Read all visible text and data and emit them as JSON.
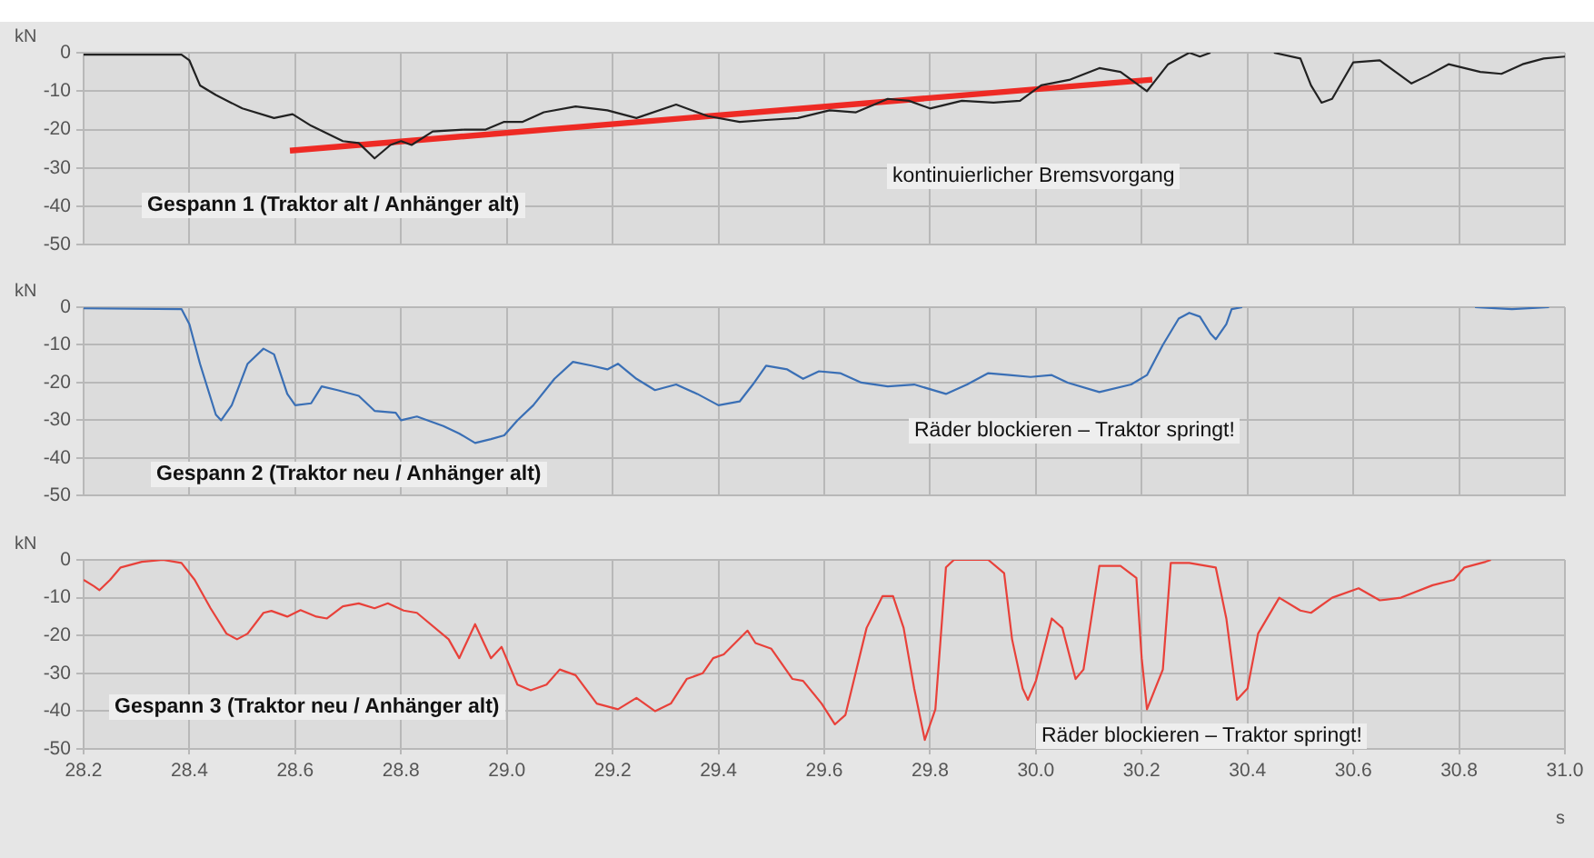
{
  "chart_data": [
    {
      "type": "line",
      "ylabel": "kN",
      "xlim": [
        28.2,
        31.0
      ],
      "ylim": [
        -50,
        0
      ],
      "yticks": [
        -50,
        -40,
        -30,
        -20,
        -10,
        0
      ],
      "xticks": [
        {
          "value": 28.2,
          "label": null
        },
        {
          "value": 28.4,
          "label": null
        },
        {
          "value": 28.6,
          "label": null
        },
        {
          "value": 28.8,
          "label": null
        },
        {
          "value": 29.0,
          "label": null
        },
        {
          "value": 29.2,
          "label": null
        },
        {
          "value": 29.4,
          "label": null
        },
        {
          "value": 29.6,
          "label": null
        },
        {
          "value": 29.8,
          "label": null
        },
        {
          "value": 30.0,
          "label": null
        },
        {
          "value": 30.2,
          "label": null
        },
        {
          "value": 30.4,
          "label": null
        },
        {
          "value": 30.6,
          "label": null
        },
        {
          "value": 30.8,
          "label": null
        },
        {
          "value": 31.0,
          "label": null
        }
      ],
      "tick_labels": "y",
      "grid": true,
      "legend": false,
      "marker": "none",
      "annotations": [
        "Gespann 1 (Traktor alt / Anhänger alt)",
        "kontinuierlicher Bremsvorgang"
      ],
      "series": [
        {
          "color": "#222222",
          "x": [
            28.2,
            28.385,
            28.4,
            28.42,
            28.45,
            28.5,
            28.56,
            28.595,
            28.63,
            28.69,
            28.72,
            28.75,
            28.78,
            28.8,
            28.82,
            28.86,
            28.92,
            28.96,
            28.995,
            29.03,
            29.07,
            29.13,
            29.19,
            29.245,
            29.32,
            29.38,
            29.44,
            29.49,
            29.55,
            29.61,
            29.66,
            29.72,
            29.76,
            29.8,
            29.86,
            29.92,
            29.97,
            30.01,
            30.065,
            30.12,
            30.16,
            30.21,
            30.25,
            30.29,
            30.31,
            30.33,
            30.4,
            30.45,
            30.5,
            30.52,
            30.54,
            30.56,
            30.6,
            30.65,
            30.69,
            30.71,
            30.74,
            30.78,
            30.84,
            30.88,
            30.92,
            30.96,
            31.0
          ],
          "values": [
            -0.5,
            -0.5,
            -2,
            -8.5,
            -11,
            -14.5,
            -17,
            -16,
            -19,
            -23,
            -23.5,
            -27.5,
            -24,
            -23,
            -24,
            -20.5,
            -20,
            -20,
            -18,
            -18,
            -15.5,
            -14,
            -15,
            -17,
            -13.5,
            -16.5,
            -18,
            -17.5,
            -17,
            -15,
            -15.5,
            -12,
            -12.5,
            -14.5,
            -12.5,
            -13,
            -12.5,
            -8.5,
            -7,
            -4,
            -5,
            -10,
            -3,
            0,
            -1,
            0,
            null,
            0,
            -1.5,
            -8.5,
            -13,
            -12,
            -2.5,
            -2,
            -6,
            -8,
            -6,
            -3,
            -5,
            -5.5,
            -3,
            -1.5,
            -1
          ]
        },
        {
          "type": "line",
          "color": "#ee2a24",
          "x": [
            28.59,
            30.22
          ],
          "values": [
            -25.5,
            -7
          ]
        }
      ]
    },
    {
      "type": "line",
      "ylabel": "kN",
      "xlim": [
        28.2,
        31.0
      ],
      "ylim": [
        -50,
        0
      ],
      "yticks": [
        -50,
        -40,
        -30,
        -20,
        -10,
        0
      ],
      "xticks": [
        {
          "value": 28.2,
          "label": null
        },
        {
          "value": 28.4,
          "label": null
        },
        {
          "value": 28.6,
          "label": null
        },
        {
          "value": 28.8,
          "label": null
        },
        {
          "value": 29.0,
          "label": null
        },
        {
          "value": 29.2,
          "label": null
        },
        {
          "value": 29.4,
          "label": null
        },
        {
          "value": 29.6,
          "label": null
        },
        {
          "value": 29.8,
          "label": null
        },
        {
          "value": 30.0,
          "label": null
        },
        {
          "value": 30.2,
          "label": null
        },
        {
          "value": 30.4,
          "label": null
        },
        {
          "value": 30.6,
          "label": null
        },
        {
          "value": 30.8,
          "label": null
        },
        {
          "value": 31.0,
          "label": null
        }
      ],
      "tick_labels": "y",
      "grid": true,
      "legend": false,
      "marker": "none",
      "annotations": [
        "Gespann 2 (Traktor neu / Anhänger alt)",
        "Räder blockieren – Traktor springt!"
      ],
      "series": [
        {
          "color": "#3a6fb5",
          "x": [
            28.2,
            28.385,
            28.4,
            28.42,
            28.45,
            28.46,
            28.48,
            28.51,
            28.54,
            28.56,
            28.585,
            28.6,
            28.63,
            28.65,
            28.68,
            28.72,
            28.75,
            28.79,
            28.8,
            28.83,
            28.88,
            28.91,
            28.94,
            28.97,
            28.995,
            29.02,
            29.05,
            29.09,
            29.125,
            29.16,
            29.19,
            29.21,
            29.245,
            29.28,
            29.32,
            29.36,
            29.4,
            29.44,
            29.465,
            29.49,
            29.53,
            29.56,
            29.59,
            29.63,
            29.67,
            29.72,
            29.77,
            29.83,
            29.87,
            29.91,
            29.95,
            29.99,
            30.03,
            30.06,
            30.12,
            30.18,
            30.21,
            30.24,
            30.27,
            30.29,
            30.31,
            30.33,
            30.34,
            30.36,
            30.37,
            30.39,
            30.6,
            30.83,
            30.9,
            30.97
          ],
          "values": [
            -0.3,
            -0.5,
            -4.5,
            -15,
            -28.5,
            -30,
            -26,
            -15,
            -11,
            -12.5,
            -23,
            -26,
            -25.5,
            -21,
            -22,
            -23.5,
            -27.5,
            -28,
            -30,
            -29,
            -31.5,
            -33.5,
            -36,
            -35,
            -34,
            -30,
            -26,
            -19,
            -14.5,
            -15.5,
            -16.5,
            -15,
            -19,
            -22,
            -20.5,
            -23,
            -26,
            -25,
            -20.5,
            -15.5,
            -16.5,
            -19,
            -17,
            -17.5,
            -20,
            -21,
            -20.5,
            -23,
            -20.5,
            -17.5,
            -18,
            -18.5,
            -18,
            -20,
            -22.5,
            -20.5,
            -18,
            -10,
            -3,
            -1.5,
            -2.5,
            -7,
            -8.5,
            -4.5,
            -0.5,
            0,
            null,
            0,
            -0.5,
            0
          ]
        }
      ]
    },
    {
      "type": "line",
      "ylabel": "kN",
      "xlabel": "s",
      "xlim": [
        28.2,
        31.0
      ],
      "ylim": [
        -50,
        0
      ],
      "yticks": [
        -50,
        -40,
        -30,
        -20,
        -10,
        0
      ],
      "xticks": [
        {
          "value": 28.2,
          "label": "28.2"
        },
        {
          "value": 28.4,
          "label": "28.4"
        },
        {
          "value": 28.6,
          "label": "28.6"
        },
        {
          "value": 28.8,
          "label": "28.8"
        },
        {
          "value": 29.0,
          "label": "29.0"
        },
        {
          "value": 29.2,
          "label": "29.2"
        },
        {
          "value": 29.4,
          "label": "29.4"
        },
        {
          "value": 29.6,
          "label": "29.6"
        },
        {
          "value": 29.8,
          "label": "29.8"
        },
        {
          "value": 30.0,
          "label": "30.0"
        },
        {
          "value": 30.2,
          "label": "30.2"
        },
        {
          "value": 30.4,
          "label": "30.4"
        },
        {
          "value": 30.6,
          "label": "30.6"
        },
        {
          "value": 30.8,
          "label": "30.8"
        },
        {
          "value": 31.0,
          "label": "31.0"
        }
      ],
      "grid": true,
      "legend": false,
      "marker": "none",
      "annotations": [
        "Gespann 3 (Traktor neu / Anhänger alt)",
        "Räder blockieren – Traktor springt!"
      ],
      "series": [
        {
          "color": "#e8413a",
          "x": [
            28.2,
            28.22,
            28.23,
            28.25,
            28.27,
            28.31,
            28.35,
            28.385,
            28.41,
            28.44,
            28.47,
            28.49,
            28.51,
            28.54,
            28.555,
            28.585,
            28.61,
            28.64,
            28.66,
            28.69,
            28.72,
            28.75,
            28.775,
            28.805,
            28.83,
            28.89,
            28.91,
            28.94,
            28.97,
            28.99,
            29.02,
            29.045,
            29.075,
            29.1,
            29.13,
            29.17,
            29.21,
            29.245,
            29.28,
            29.31,
            29.34,
            29.37,
            29.39,
            29.41,
            29.455,
            29.47,
            29.5,
            29.54,
            29.56,
            29.595,
            29.62,
            29.64,
            29.68,
            29.71,
            29.73,
            29.75,
            29.77,
            29.79,
            29.81,
            29.83,
            29.845,
            29.91,
            29.94,
            29.955,
            29.975,
            29.985,
            30.0,
            30.03,
            30.05,
            30.075,
            30.09,
            30.12,
            30.16,
            30.19,
            30.2,
            30.21,
            30.24,
            30.255,
            30.29,
            30.34,
            30.36,
            30.38,
            30.4,
            30.42,
            30.46,
            30.5,
            30.52,
            30.56,
            30.61,
            30.65,
            30.69,
            30.75,
            30.79,
            30.81,
            30.85,
            30.86
          ],
          "values": [
            -5.3,
            -7,
            -8,
            -5.3,
            -2,
            -0.5,
            0,
            -0.8,
            -5.3,
            -12.8,
            -19.5,
            -21,
            -19.5,
            -14,
            -13.5,
            -15,
            -13.3,
            -15,
            -15.5,
            -12.3,
            -11.5,
            -12.8,
            -11.5,
            -13.4,
            -14,
            -21,
            -26,
            -17,
            -26,
            -23,
            -33,
            -34.5,
            -33,
            -29,
            -30.5,
            -38,
            -39.5,
            -36.5,
            -40,
            -38,
            -31.5,
            -30,
            -26,
            -25,
            -18.7,
            -22,
            -23.5,
            -31.5,
            -32,
            -38,
            -43.5,
            -41,
            -18,
            -9.6,
            -9.6,
            -18,
            -34,
            -47.6,
            -39.5,
            -2,
            0,
            0,
            -3.5,
            -21,
            -34,
            -37,
            -32,
            -15.5,
            -18,
            -31.5,
            -29,
            -1.6,
            -1.6,
            -4.8,
            -26,
            -39.5,
            -29,
            -0.8,
            -0.8,
            -2,
            -15.5,
            -37,
            -34,
            -19.5,
            -10,
            -13.4,
            -14,
            -10,
            -7.5,
            -10.7,
            -10,
            -6.7,
            -5.3,
            -2,
            -0.5,
            0
          ]
        }
      ]
    }
  ]
}
